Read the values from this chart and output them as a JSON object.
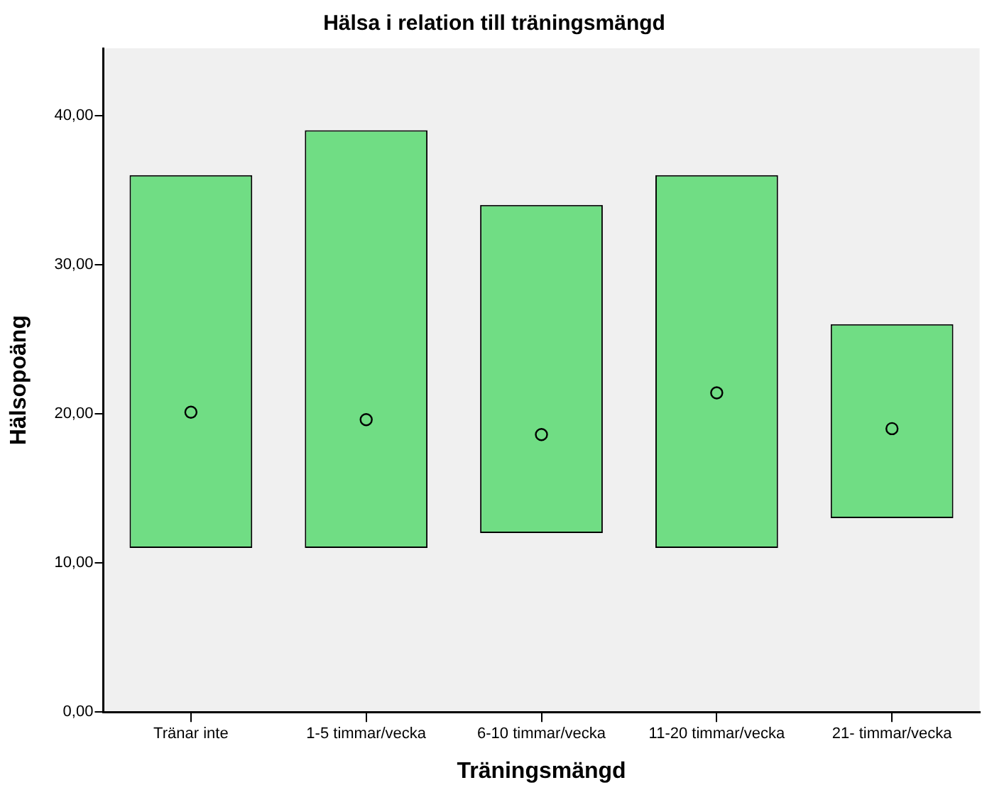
{
  "chart_data": {
    "type": "bar",
    "title": "Hälsa i relation till träningsmängd",
    "xlabel": "Träningsmängd",
    "ylabel": "Hälsopoäng",
    "categories": [
      "Tränar inte",
      "1-5 timmar/vecka",
      "6-10 timmar/vecka",
      "11-20 timmar/vecka",
      "21- timmar/vecka"
    ],
    "series": [
      {
        "color": "#70dd84",
        "base": [
          11,
          11,
          12,
          11,
          13
        ],
        "values": [
          25,
          28,
          22,
          25,
          13
        ]
      },
      {
        "type": "scatter",
        "color": "#000000",
        "marker": "circle",
        "x": [
          "Tränar inte",
          "1-5 timmar/vecka",
          "6-10 timmar/vecka",
          "11-20 timmar/vecka",
          "21- timmar/vecka"
        ],
        "values": [
          20.1,
          19.6,
          18.6,
          21.4,
          19.0
        ]
      }
    ],
    "ylim": [
      0,
      44.5
    ],
    "yticks": [
      {
        "value": 0,
        "label": "0,00"
      },
      {
        "value": 10,
        "label": "10,00"
      },
      {
        "value": 20,
        "label": "20,00"
      },
      {
        "value": 30,
        "label": "30,00"
      },
      {
        "value": 40,
        "label": "40,00"
      }
    ],
    "grid": false,
    "legend": false
  }
}
